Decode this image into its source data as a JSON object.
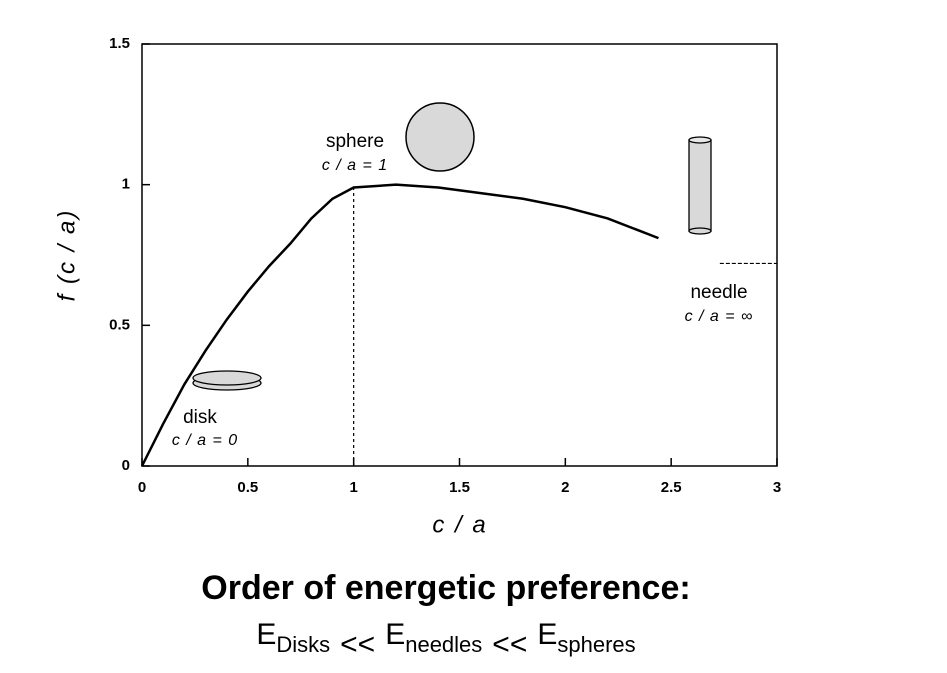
{
  "chart_data": {
    "type": "line",
    "x": [
      0,
      0.1,
      0.2,
      0.3,
      0.4,
      0.5,
      0.6,
      0.7,
      0.8,
      0.9,
      1.0,
      1.2,
      1.4,
      1.6,
      1.8,
      2.0,
      2.2,
      2.44
    ],
    "values": [
      0,
      0.15,
      0.29,
      0.41,
      0.52,
      0.62,
      0.71,
      0.79,
      0.88,
      0.95,
      0.99,
      1.0,
      0.99,
      0.97,
      0.95,
      0.92,
      0.88,
      0.81
    ],
    "color": "#000000",
    "xlim": [
      0,
      3
    ],
    "ylim": [
      0,
      1.5
    ],
    "xticks": [
      0,
      0.5,
      1,
      1.5,
      2,
      2.5,
      3
    ],
    "yticks": [
      0,
      0.5,
      1,
      1.5
    ],
    "xlabel": "c / a",
    "ylabel": "f (c / a)",
    "annotations": {
      "sphere": {
        "label": "sphere",
        "ratio": "c / a = 1",
        "x": 1,
        "y": 0.99
      },
      "disk": {
        "label": "disk",
        "ratio": "c / a = 0"
      },
      "needle": {
        "label": "needle",
        "ratio": "c / a = ∞",
        "x": [
          2.73,
          3
        ],
        "y": 0.72
      }
    }
  },
  "footer": {
    "title": "Order of energetic preference:",
    "operator": "<<",
    "terms": [
      {
        "base": "E",
        "sub": "Disks"
      },
      {
        "base": "E",
        "sub": "needles"
      },
      {
        "base": "E",
        "sub": "spheres"
      }
    ]
  }
}
